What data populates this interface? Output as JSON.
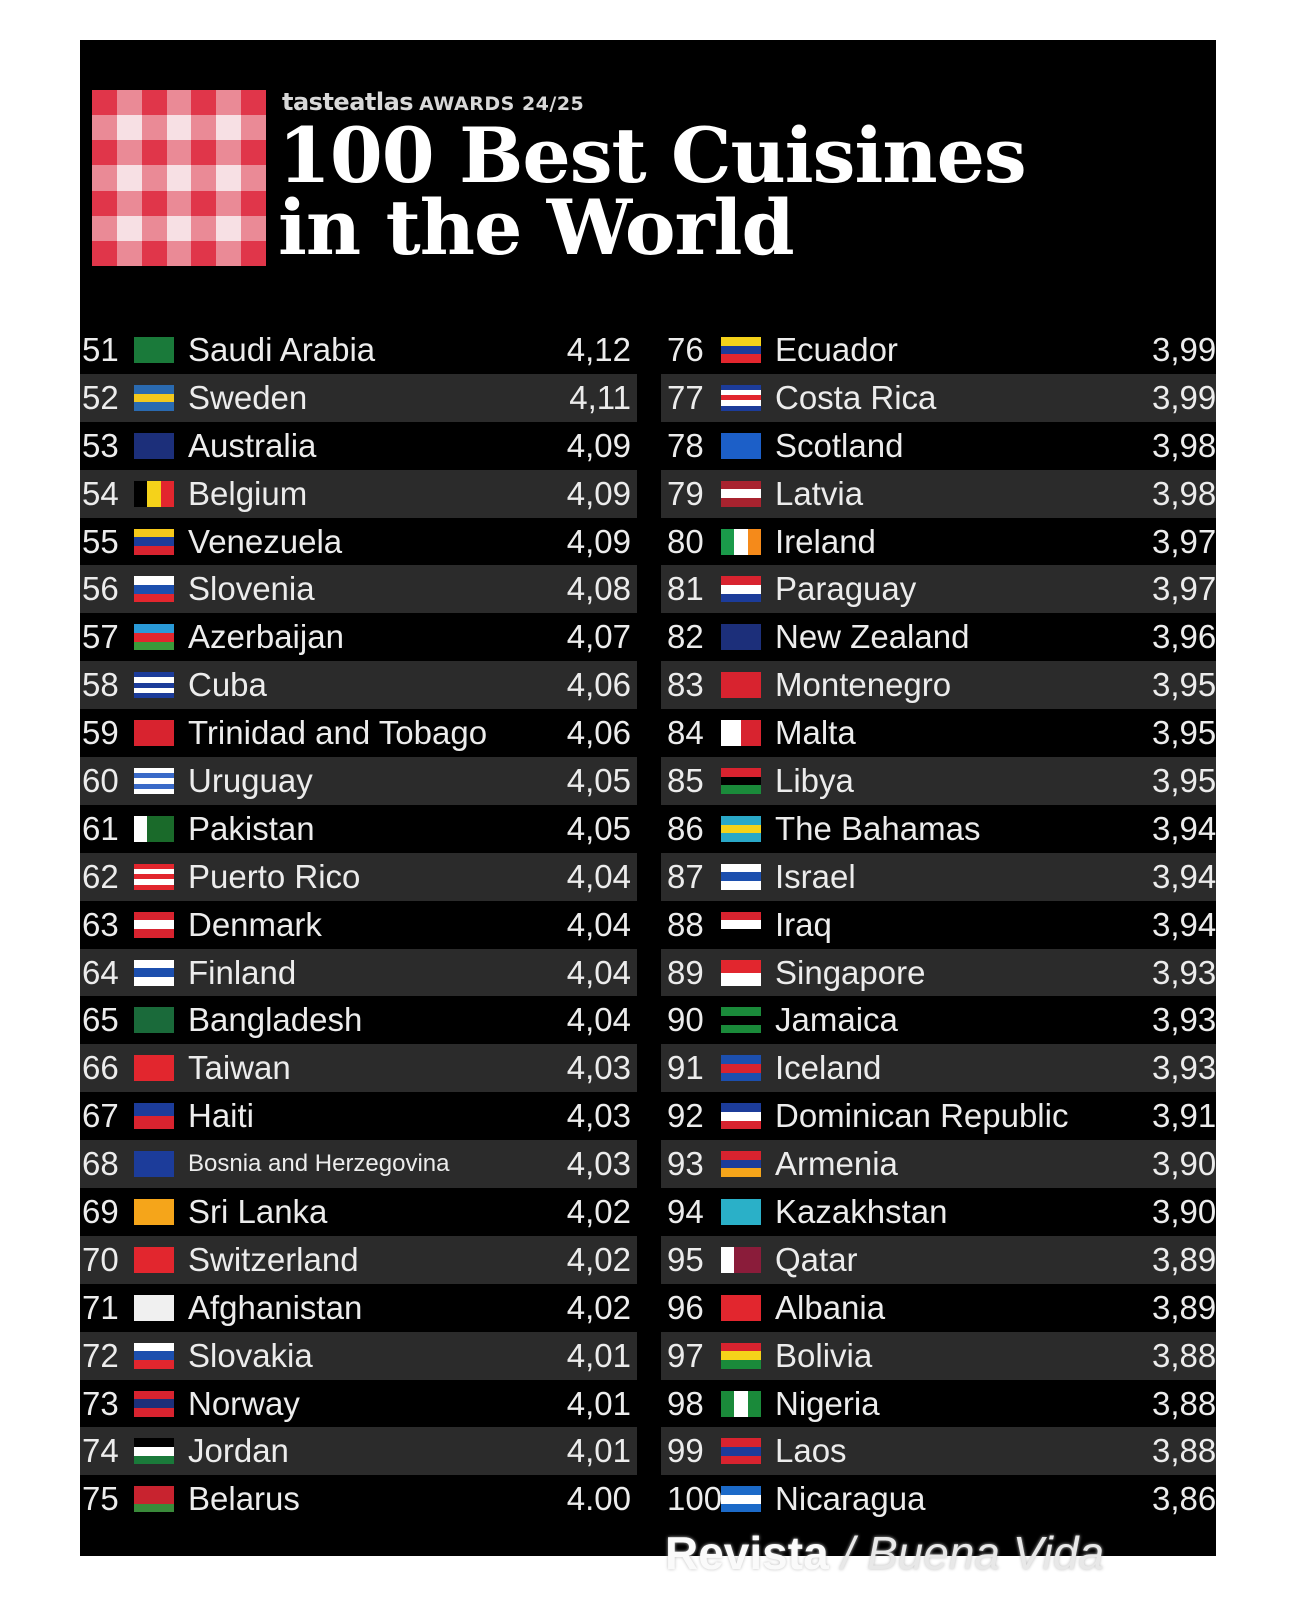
{
  "header": {
    "brand": "tasteatlas",
    "awards": "AWARDS 24/25",
    "title_line1": "100 Best Cuisines",
    "title_line2": "in the World"
  },
  "left_column": [
    {
      "rank": "51",
      "country": "Saudi Arabia",
      "score": "4,12",
      "flag": [
        "#1a7a3a"
      ]
    },
    {
      "rank": "52",
      "country": "Sweden",
      "score": "4,11",
      "flag": [
        "#2a6ab0",
        "#f2c81e",
        "#2a6ab0"
      ]
    },
    {
      "rank": "53",
      "country": "Australia",
      "score": "4,09",
      "flag": [
        "#1c2f7a"
      ]
    },
    {
      "rank": "54",
      "country": "Belgium",
      "score": "4,09",
      "flag": [
        "#000000",
        "#f5d21a",
        "#e2262e"
      ],
      "vertical": true
    },
    {
      "rank": "55",
      "country": "Venezuela",
      "score": "4,09",
      "flag": [
        "#f5c81a",
        "#1c3c9a",
        "#d8232f"
      ]
    },
    {
      "rank": "56",
      "country": "Slovenia",
      "score": "4,08",
      "flag": [
        "#ffffff",
        "#1c4fae",
        "#e2262e"
      ]
    },
    {
      "rank": "57",
      "country": "Azerbaijan",
      "score": "4,07",
      "flag": [
        "#2a9ad8",
        "#e2262e",
        "#3a9a3a"
      ]
    },
    {
      "rank": "58",
      "country": "Cuba",
      "score": "4,06",
      "flag": [
        "#1c3c9a",
        "#ffffff",
        "#1c3c9a",
        "#ffffff",
        "#1c3c9a"
      ]
    },
    {
      "rank": "59",
      "country": "Trinidad and Tobago",
      "score": "4,06",
      "flag": [
        "#d8232f"
      ]
    },
    {
      "rank": "60",
      "country": "Uruguay",
      "score": "4,05",
      "flag": [
        "#ffffff",
        "#3a6ac8",
        "#ffffff",
        "#3a6ac8",
        "#ffffff"
      ]
    },
    {
      "rank": "61",
      "country": "Pakistan",
      "score": "4,05",
      "flag": [
        "#ffffff",
        "#1a6a2a",
        "#1a6a2a"
      ],
      "vertical": true
    },
    {
      "rank": "62",
      "country": "Puerto Rico",
      "score": "4,04",
      "flag": [
        "#e2262e",
        "#ffffff",
        "#e2262e",
        "#ffffff",
        "#e2262e"
      ]
    },
    {
      "rank": "63",
      "country": "Denmark",
      "score": "4,04",
      "flag": [
        "#d8232f",
        "#ffffff",
        "#d8232f"
      ]
    },
    {
      "rank": "64",
      "country": "Finland",
      "score": "4,04",
      "flag": [
        "#ffffff",
        "#1c4fae",
        "#ffffff"
      ]
    },
    {
      "rank": "65",
      "country": "Bangladesh",
      "score": "4,04",
      "flag": [
        "#1a6a3a"
      ]
    },
    {
      "rank": "66",
      "country": "Taiwan",
      "score": "4,03",
      "flag": [
        "#e2262e"
      ]
    },
    {
      "rank": "67",
      "country": "Haiti",
      "score": "4,03",
      "flag": [
        "#1c3c9a",
        "#d8232f"
      ]
    },
    {
      "rank": "68",
      "country": "Bosnia and Herzegovina",
      "score": "4,03",
      "flag": [
        "#1c3c9a"
      ],
      "small": true
    },
    {
      "rank": "69",
      "country": "Sri Lanka",
      "score": "4,02",
      "flag": [
        "#f5a51a"
      ]
    },
    {
      "rank": "70",
      "country": "Switzerland",
      "score": "4,02",
      "flag": [
        "#e2262e"
      ]
    },
    {
      "rank": "71",
      "country": "Afghanistan",
      "score": "4,02",
      "flag": [
        "#f0f0f0"
      ]
    },
    {
      "rank": "72",
      "country": "Slovakia",
      "score": "4,01",
      "flag": [
        "#ffffff",
        "#1c4fae",
        "#e2262e"
      ]
    },
    {
      "rank": "73",
      "country": "Norway",
      "score": "4,01",
      "flag": [
        "#d8232f",
        "#1c2f7a",
        "#d8232f"
      ]
    },
    {
      "rank": "74",
      "country": "Jordan",
      "score": "4,01",
      "flag": [
        "#000000",
        "#ffffff",
        "#1a7a3a"
      ]
    },
    {
      "rank": "75",
      "country": "Belarus",
      "score": "4.00",
      "flag": [
        "#c8232f",
        "#c8232f",
        "#3a8a3a"
      ]
    }
  ],
  "right_column": [
    {
      "rank": "76",
      "country": "Ecuador",
      "score": "3,99",
      "flag": [
        "#f5d21a",
        "#1c3c9a",
        "#e2262e"
      ]
    },
    {
      "rank": "77",
      "country": "Costa Rica",
      "score": "3,99",
      "flag": [
        "#1c3c9a",
        "#ffffff",
        "#e2262e",
        "#ffffff",
        "#1c3c9a"
      ]
    },
    {
      "rank": "78",
      "country": "Scotland",
      "score": "3,98",
      "flag": [
        "#1c5fc8"
      ]
    },
    {
      "rank": "79",
      "country": "Latvia",
      "score": "3,98",
      "flag": [
        "#a8232f",
        "#ffffff",
        "#a8232f"
      ]
    },
    {
      "rank": "80",
      "country": "Ireland",
      "score": "3,97",
      "flag": [
        "#1a9a4a",
        "#ffffff",
        "#f58a1a"
      ],
      "vertical": true
    },
    {
      "rank": "81",
      "country": "Paraguay",
      "score": "3,97",
      "flag": [
        "#d8232f",
        "#ffffff",
        "#1c3c9a"
      ]
    },
    {
      "rank": "82",
      "country": "New Zealand",
      "score": "3,96",
      "flag": [
        "#1c2f7a"
      ]
    },
    {
      "rank": "83",
      "country": "Montenegro",
      "score": "3,95",
      "flag": [
        "#d8232f"
      ]
    },
    {
      "rank": "84",
      "country": "Malta",
      "score": "3,95",
      "flag": [
        "#ffffff",
        "#d8232f"
      ],
      "vertical": true
    },
    {
      "rank": "85",
      "country": "Libya",
      "score": "3,95",
      "flag": [
        "#d8232f",
        "#000000",
        "#1a8a3a"
      ]
    },
    {
      "rank": "86",
      "country": "The Bahamas",
      "score": "3,94",
      "flag": [
        "#2aa8c8",
        "#f5d21a",
        "#2aa8c8"
      ]
    },
    {
      "rank": "87",
      "country": "Israel",
      "score": "3,94",
      "flag": [
        "#ffffff",
        "#1c4fae",
        "#ffffff"
      ]
    },
    {
      "rank": "88",
      "country": "Iraq",
      "score": "3,94",
      "flag": [
        "#d8232f",
        "#ffffff",
        "#000000"
      ]
    },
    {
      "rank": "89",
      "country": "Singapore",
      "score": "3,93",
      "flag": [
        "#e2262e",
        "#ffffff"
      ]
    },
    {
      "rank": "90",
      "country": "Jamaica",
      "score": "3,93",
      "flag": [
        "#1a8a3a",
        "#000000",
        "#1a8a3a"
      ]
    },
    {
      "rank": "91",
      "country": "Iceland",
      "score": "3,93",
      "flag": [
        "#1c4fae",
        "#d8232f",
        "#1c4fae"
      ]
    },
    {
      "rank": "92",
      "country": "Dominican Republic",
      "score": "3,91",
      "flag": [
        "#1c3c9a",
        "#ffffff",
        "#d8232f"
      ]
    },
    {
      "rank": "93",
      "country": "Armenia",
      "score": "3,90",
      "flag": [
        "#d8232f",
        "#1c3c9a",
        "#f5a51a"
      ]
    },
    {
      "rank": "94",
      "country": "Kazakhstan",
      "score": "3,90",
      "flag": [
        "#2ab0c8"
      ]
    },
    {
      "rank": "95",
      "country": "Qatar",
      "score": "3,89",
      "flag": [
        "#ffffff",
        "#8a1c3a",
        "#8a1c3a"
      ],
      "vertical": true
    },
    {
      "rank": "96",
      "country": "Albania",
      "score": "3,89",
      "flag": [
        "#e2262e"
      ]
    },
    {
      "rank": "97",
      "country": "Bolivia",
      "score": "3,88",
      "flag": [
        "#d8232f",
        "#f5d21a",
        "#1a8a3a"
      ]
    },
    {
      "rank": "98",
      "country": "Nigeria",
      "score": "3,88",
      "flag": [
        "#1a8a3a",
        "#ffffff",
        "#1a8a3a"
      ],
      "vertical": true
    },
    {
      "rank": "99",
      "country": "Laos",
      "score": "3,88",
      "flag": [
        "#d8232f",
        "#1c3c9a",
        "#d8232f"
      ]
    },
    {
      "rank": "100",
      "country": "Nicaragua",
      "score": "3,86",
      "flag": [
        "#1c6ac8",
        "#ffffff",
        "#1c6ac8"
      ]
    }
  ],
  "watermark": {
    "bold": "Revista",
    "light": "/ Buena Vida"
  }
}
